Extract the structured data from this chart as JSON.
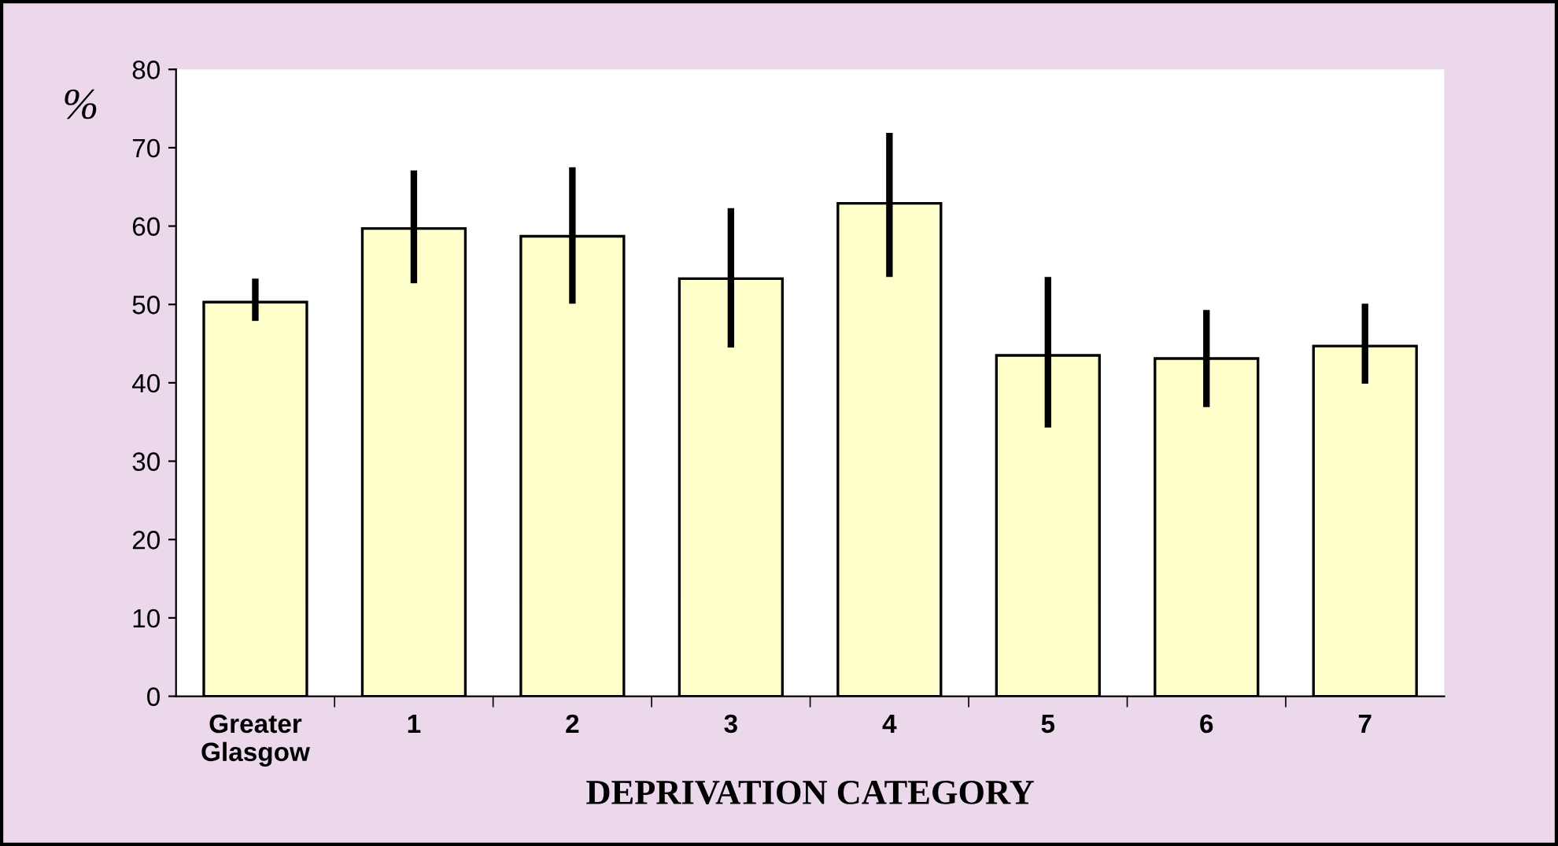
{
  "chart_data": {
    "type": "bar",
    "xlabel": "DEPRIVATION CATEGORY",
    "ylabel": "%",
    "categories": [
      "Greater Glasgow",
      "1",
      "2",
      "3",
      "4",
      "5",
      "6",
      "7"
    ],
    "values": [
      50.3,
      59.7,
      58.7,
      53.3,
      62.9,
      43.5,
      43.1,
      44.7
    ],
    "errors": [
      [
        47.9,
        53.3
      ],
      [
        52.7,
        67.1
      ],
      [
        50.1,
        67.5
      ],
      [
        44.5,
        62.3
      ],
      [
        53.5,
        71.9
      ],
      [
        34.3,
        53.5
      ],
      [
        36.9,
        49.3
      ],
      [
        39.9,
        50.1
      ]
    ],
    "color": "#ffffcc",
    "ylim": [
      0,
      80
    ],
    "yticks": [
      0,
      10,
      20,
      30,
      40,
      50,
      60,
      70,
      80
    ],
    "grid": false,
    "legend": false
  }
}
